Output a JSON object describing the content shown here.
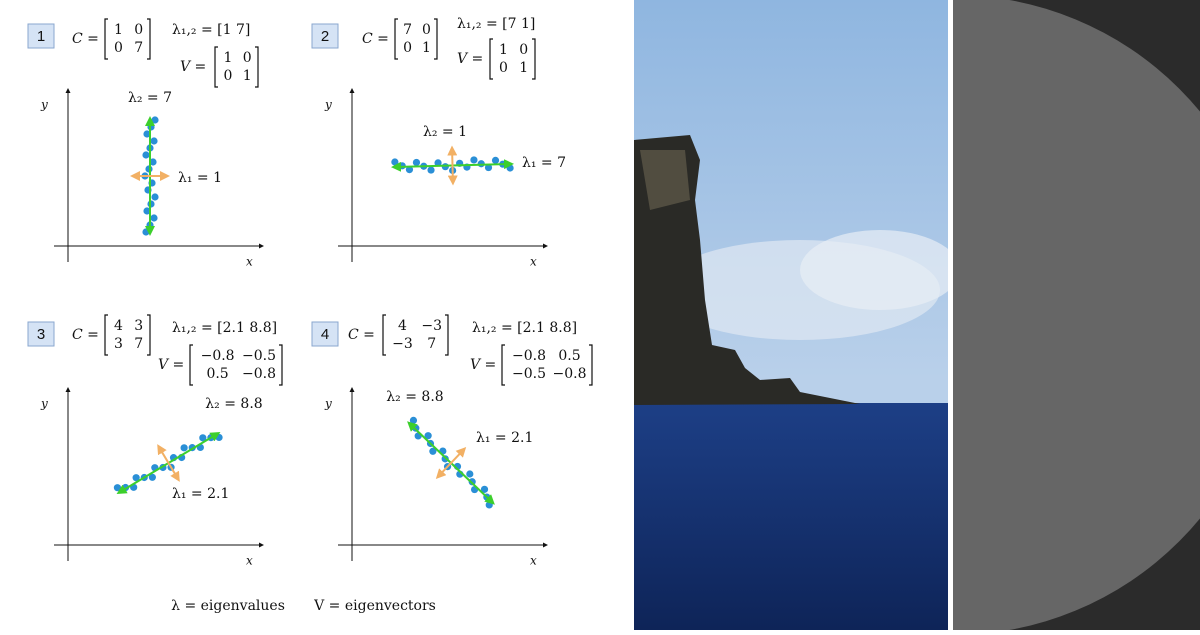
{
  "panels": [
    {
      "number": "1",
      "c_label": "C =",
      "C": [
        [
          "1",
          "0"
        ],
        [
          "0",
          "7"
        ]
      ],
      "lambda": "λ₁,₂ = [1   7]",
      "v_label": "V =",
      "V": [
        [
          "1",
          "0"
        ],
        [
          "0",
          "1"
        ]
      ],
      "axis_x": "x",
      "axis_y": "y",
      "major": "λ₂ = 7",
      "minor": "λ₁ = 1"
    },
    {
      "number": "2",
      "c_label": "C =",
      "C": [
        [
          "7",
          "0"
        ],
        [
          "0",
          "1"
        ]
      ],
      "lambda": "λ₁,₂ = [7   1]",
      "v_label": "V =",
      "V": [
        [
          "1",
          "0"
        ],
        [
          "0",
          "1"
        ]
      ],
      "axis_x": "x",
      "axis_y": "y",
      "major": "λ₁ = 7",
      "minor": "λ₂ = 1"
    },
    {
      "number": "3",
      "c_label": "C =",
      "C": [
        [
          "4",
          "3"
        ],
        [
          "3",
          "7"
        ]
      ],
      "lambda": "λ₁,₂ = [2.1   8.8]",
      "v_label": "V =",
      "V": [
        [
          "−0.8",
          "−0.5"
        ],
        [
          "0.5",
          "−0.8"
        ]
      ],
      "axis_x": "x",
      "axis_y": "y",
      "major": "λ₂ = 8.8",
      "minor": "λ₁ = 2.1"
    },
    {
      "number": "4",
      "c_label": "C =",
      "C": [
        [
          "4",
          "−3"
        ],
        [
          "−3",
          "7"
        ]
      ],
      "lambda": "λ₁,₂ = [2.1   8.8]",
      "v_label": "V =",
      "V": [
        [
          "−0.8",
          "0.5"
        ],
        [
          "−0.5",
          "−0.8"
        ]
      ],
      "axis_x": "x",
      "axis_y": "y",
      "major": "λ₂ = 8.8",
      "minor": "λ₁ = 2.1"
    }
  ],
  "legend": [
    "λ = eigenvalues",
    "V = eigenvectors"
  ]
}
